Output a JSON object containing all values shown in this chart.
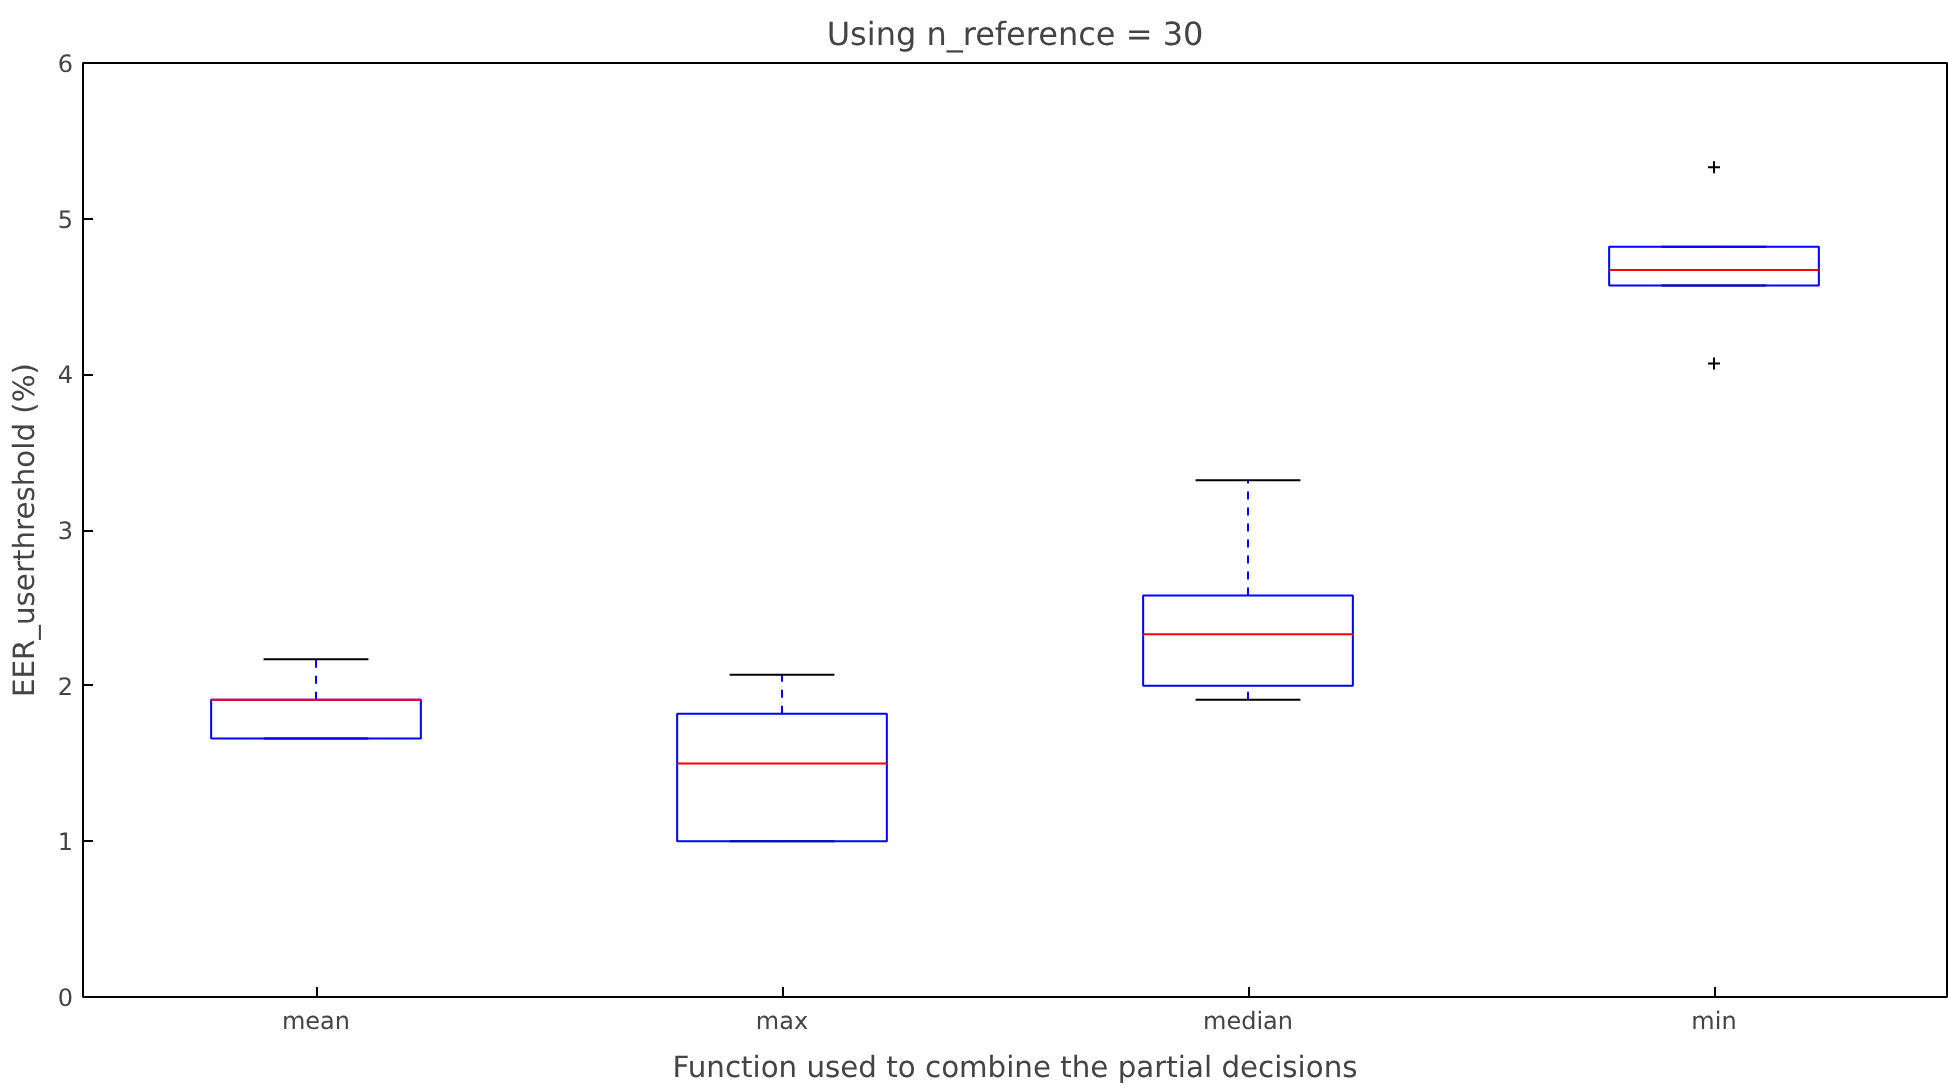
{
  "chart_data": {
    "type": "box",
    "title": "Using n_reference = 30",
    "xlabel": "Function used to combine the partial decisions",
    "ylabel": "EER_userthreshold (%)",
    "categories": [
      "mean",
      "max",
      "median",
      "min"
    ],
    "ylim": [
      0,
      6
    ],
    "yticks": [
      0,
      1,
      2,
      3,
      4,
      5,
      6
    ],
    "grid": false,
    "marker": "cross",
    "series": [
      {
        "color": "#0000ff",
        "boxes": [
          {
            "low": 1.66,
            "q1": 1.66,
            "median": 1.91,
            "q3": 1.91,
            "high": 2.17
          },
          {
            "low": 1.0,
            "q1": 1.0,
            "median": 1.5,
            "q3": 1.82,
            "high": 2.07
          },
          {
            "low": 1.91,
            "q1": 2.0,
            "median": 2.33,
            "q3": 2.58,
            "high": 3.32
          },
          {
            "low": 4.57,
            "q1": 4.57,
            "median": 4.67,
            "q3": 4.82,
            "high": 4.82,
            "outliers": [
              5.33,
              4.07
            ]
          }
        ]
      }
    ]
  }
}
